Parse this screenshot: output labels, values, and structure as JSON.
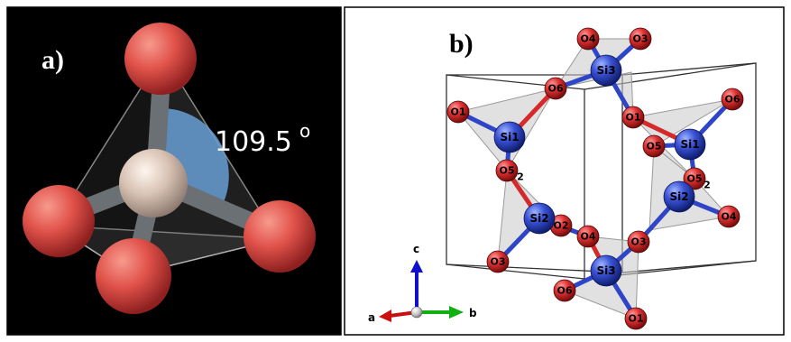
{
  "panel_a": {
    "label": "a)",
    "angle": "109.5",
    "degree": "o"
  },
  "panel_b": {
    "label": "b)",
    "axes": {
      "c": "c",
      "a": "a",
      "b": "b"
    },
    "atoms": [
      {
        "id": "si3_top",
        "label": "Si3",
        "type": "Si"
      },
      {
        "id": "si1_left",
        "label": "Si1",
        "type": "Si"
      },
      {
        "id": "si2_left",
        "label": "Si2",
        "type": "Si"
      },
      {
        "id": "si1_right",
        "label": "Si1",
        "type": "Si"
      },
      {
        "id": "si2_right",
        "label": "Si2",
        "type": "Si"
      },
      {
        "id": "si3_bottom",
        "label": "Si3",
        "type": "Si"
      },
      {
        "id": "o4_top",
        "label": "O4",
        "type": "O"
      },
      {
        "id": "o3_top",
        "label": "O3",
        "type": "O"
      },
      {
        "id": "o6_top",
        "label": "O6",
        "type": "O"
      },
      {
        "id": "o1_top",
        "label": "O1",
        "type": "O"
      },
      {
        "id": "o1_left",
        "label": "O1",
        "type": "O"
      },
      {
        "id": "o5_left",
        "label": "O5",
        "sub": "2",
        "type": "O"
      },
      {
        "id": "o2_left",
        "label": "O2",
        "type": "O"
      },
      {
        "id": "o3_left",
        "label": "O3",
        "type": "O"
      },
      {
        "id": "o4_mid",
        "label": "O4",
        "type": "O"
      },
      {
        "id": "o6_right",
        "label": "O6",
        "type": "O"
      },
      {
        "id": "o5_right_a",
        "label": "O5",
        "type": "O"
      },
      {
        "id": "o5_right_b",
        "label": "O5",
        "sub": "2",
        "type": "O"
      },
      {
        "id": "o4_right",
        "label": "O4",
        "type": "O"
      },
      {
        "id": "o3_mid",
        "label": "O3",
        "type": "O"
      },
      {
        "id": "o6_bottom",
        "label": "O6",
        "type": "O"
      },
      {
        "id": "o1_bottom",
        "label": "O1",
        "type": "O"
      }
    ],
    "colors": {
      "oxygen": "#d42a2a",
      "silicon": "#2f45c8"
    }
  }
}
